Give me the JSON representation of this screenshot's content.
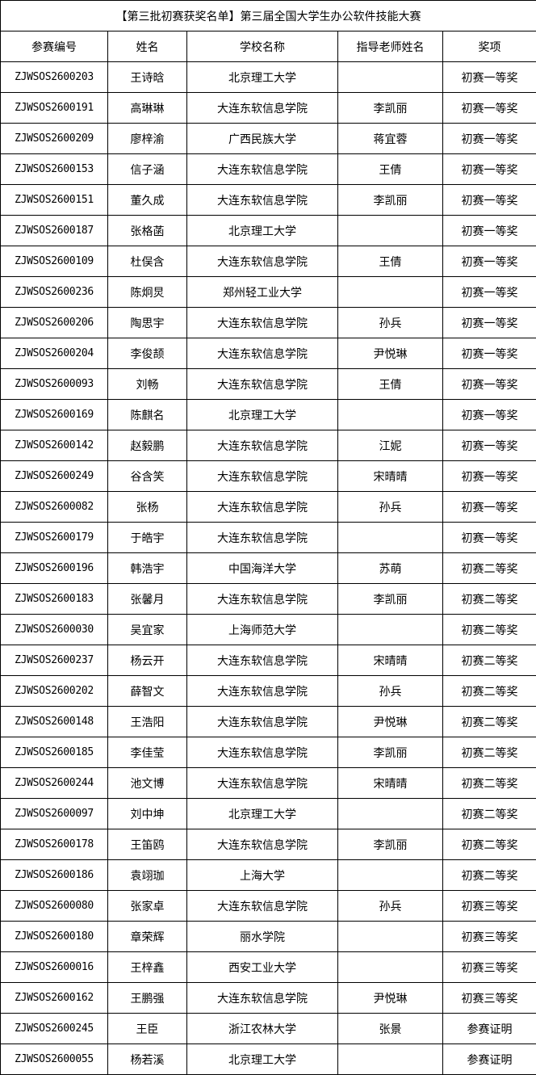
{
  "title": "【第三批初赛获奖名单】第三届全国大学生办公软件技能大赛",
  "columns": [
    "参赛编号",
    "姓名",
    "学校名称",
    "指导老师姓名",
    "奖项"
  ],
  "rows": [
    [
      "ZJWSOS2600203",
      "王诗晗",
      "北京理工大学",
      "",
      "初赛一等奖"
    ],
    [
      "ZJWSOS2600191",
      "高琳琳",
      "大连东软信息学院",
      "李凯丽",
      "初赛一等奖"
    ],
    [
      "ZJWSOS2600209",
      "廖梓渝",
      "广西民族大学",
      "蒋宜蓉",
      "初赛一等奖"
    ],
    [
      "ZJWSOS2600153",
      "信子涵",
      "大连东软信息学院",
      "王倩",
      "初赛一等奖"
    ],
    [
      "ZJWSOS2600151",
      "董久成",
      "大连东软信息学院",
      "李凯丽",
      "初赛一等奖"
    ],
    [
      "ZJWSOS2600187",
      "张格菡",
      "北京理工大学",
      "",
      "初赛一等奖"
    ],
    [
      "ZJWSOS2600109",
      "杜俣含",
      "大连东软信息学院",
      "王倩",
      "初赛一等奖"
    ],
    [
      "ZJWSOS2600236",
      "陈炯炅",
      "郑州轻工业大学",
      "",
      "初赛一等奖"
    ],
    [
      "ZJWSOS2600206",
      "陶思宇",
      "大连东软信息学院",
      "孙兵",
      "初赛一等奖"
    ],
    [
      "ZJWSOS2600204",
      "李俊颉",
      "大连东软信息学院",
      "尹悦琳",
      "初赛一等奖"
    ],
    [
      "ZJWSOS2600093",
      "刘畅",
      "大连东软信息学院",
      "王倩",
      "初赛一等奖"
    ],
    [
      "ZJWSOS2600169",
      "陈麒名",
      "北京理工大学",
      "",
      "初赛一等奖"
    ],
    [
      "ZJWSOS2600142",
      "赵毅鹏",
      "大连东软信息学院",
      "江妮",
      "初赛一等奖"
    ],
    [
      "ZJWSOS2600249",
      "谷含笑",
      "大连东软信息学院",
      "宋晴晴",
      "初赛一等奖"
    ],
    [
      "ZJWSOS2600082",
      "张杨",
      "大连东软信息学院",
      "孙兵",
      "初赛一等奖"
    ],
    [
      "ZJWSOS2600179",
      "于皓宇",
      "大连东软信息学院",
      "",
      "初赛一等奖"
    ],
    [
      "ZJWSOS2600196",
      "韩浩宇",
      "中国海洋大学",
      "苏萌",
      "初赛二等奖"
    ],
    [
      "ZJWSOS2600183",
      "张馨月",
      "大连东软信息学院",
      "李凯丽",
      "初赛二等奖"
    ],
    [
      "ZJWSOS2600030",
      "吴宜家",
      "上海师范大学",
      "",
      "初赛二等奖"
    ],
    [
      "ZJWSOS2600237",
      "杨云开",
      "大连东软信息学院",
      "宋晴晴",
      "初赛二等奖"
    ],
    [
      "ZJWSOS2600202",
      "薛智文",
      "大连东软信息学院",
      "孙兵",
      "初赛二等奖"
    ],
    [
      "ZJWSOS2600148",
      "王浩阳",
      "大连东软信息学院",
      "尹悦琳",
      "初赛二等奖"
    ],
    [
      "ZJWSOS2600185",
      "李佳莹",
      "大连东软信息学院",
      "李凯丽",
      "初赛二等奖"
    ],
    [
      "ZJWSOS2600244",
      "池文博",
      "大连东软信息学院",
      "宋晴晴",
      "初赛二等奖"
    ],
    [
      "ZJWSOS2600097",
      "刘中坤",
      "北京理工大学",
      "",
      "初赛二等奖"
    ],
    [
      "ZJWSOS2600178",
      "王笛鸥",
      "大连东软信息学院",
      "李凯丽",
      "初赛二等奖"
    ],
    [
      "ZJWSOS2600186",
      "袁翊珈",
      "上海大学",
      "",
      "初赛二等奖"
    ],
    [
      "ZJWSOS2600080",
      "张家卓",
      "大连东软信息学院",
      "孙兵",
      "初赛三等奖"
    ],
    [
      "ZJWSOS2600180",
      "章荣辉",
      "丽水学院",
      "",
      "初赛三等奖"
    ],
    [
      "ZJWSOS2600016",
      "王梓鑫",
      "西安工业大学",
      "",
      "初赛三等奖"
    ],
    [
      "ZJWSOS2600162",
      "王鹏强",
      "大连东软信息学院",
      "尹悦琳",
      "初赛三等奖"
    ],
    [
      "ZJWSOS2600245",
      "王臣",
      "浙江农林大学",
      "张景",
      "参赛证明"
    ],
    [
      "ZJWSOS2600055",
      "杨若溪",
      "北京理工大学",
      "",
      "参赛证明"
    ]
  ]
}
